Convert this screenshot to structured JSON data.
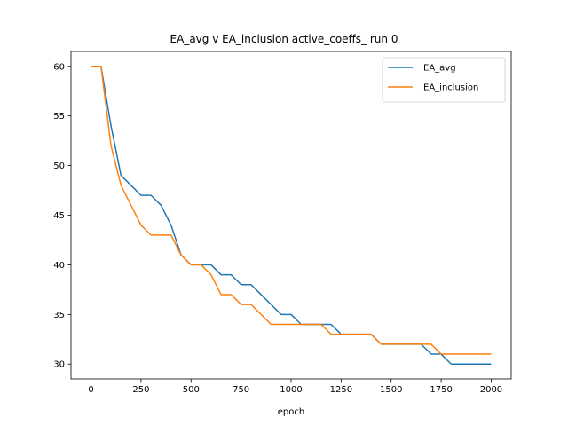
{
  "chart_data": {
    "type": "line",
    "title": "EA_avg v EA_inclusion active_coeffs_ run 0",
    "xlabel": "epoch",
    "ylabel": "",
    "xlim": [
      -100,
      2100
    ],
    "ylim": [
      28.5,
      61.5
    ],
    "xticks": [
      0,
      250,
      500,
      750,
      1000,
      1250,
      1500,
      1750,
      2000
    ],
    "yticks": [
      30,
      35,
      40,
      45,
      50,
      55,
      60
    ],
    "legend_position": "top-right",
    "grid": false,
    "series": [
      {
        "name": "EA_avg",
        "color": "#1f77b4",
        "x": [
          0,
          50,
          100,
          150,
          200,
          250,
          300,
          350,
          400,
          450,
          500,
          550,
          600,
          650,
          700,
          750,
          800,
          850,
          900,
          950,
          1000,
          1050,
          1100,
          1150,
          1200,
          1250,
          1300,
          1350,
          1400,
          1450,
          1500,
          1550,
          1600,
          1650,
          1700,
          1750,
          1800,
          1850,
          1900,
          1950,
          2000
        ],
        "y": [
          60,
          60,
          54,
          49,
          48,
          47,
          47,
          46,
          44,
          41,
          40,
          40,
          40,
          39,
          39,
          38,
          38,
          37,
          36,
          35,
          35,
          34,
          34,
          34,
          34,
          33,
          33,
          33,
          33,
          32,
          32,
          32,
          32,
          32,
          31,
          31,
          30,
          30,
          30,
          30,
          30
        ]
      },
      {
        "name": "EA_inclusion",
        "color": "#ff7f0e",
        "x": [
          0,
          50,
          100,
          150,
          200,
          250,
          300,
          350,
          400,
          450,
          500,
          550,
          600,
          650,
          700,
          750,
          800,
          850,
          900,
          950,
          1000,
          1050,
          1100,
          1150,
          1200,
          1250,
          1300,
          1350,
          1400,
          1450,
          1500,
          1550,
          1600,
          1650,
          1700,
          1750,
          1800,
          1850,
          1900,
          1950,
          2000
        ],
        "y": [
          60,
          60,
          52,
          48,
          46,
          44,
          43,
          43,
          43,
          41,
          40,
          40,
          39,
          37,
          37,
          36,
          36,
          35,
          34,
          34,
          34,
          34,
          34,
          34,
          33,
          33,
          33,
          33,
          33,
          32,
          32,
          32,
          32,
          32,
          32,
          31,
          31,
          31,
          31,
          31,
          31
        ]
      }
    ]
  }
}
